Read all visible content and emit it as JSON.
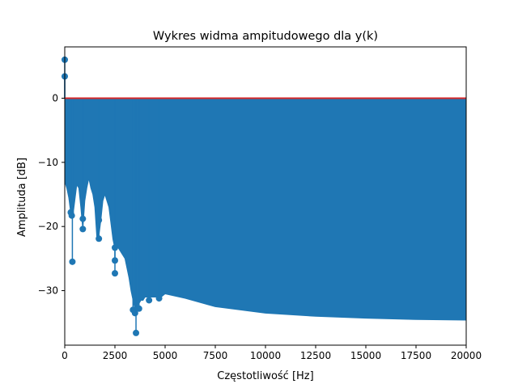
{
  "chart_data": {
    "type": "stem",
    "title": "Wykres widma ampitudowego dla y(k)",
    "xlabel": "Częstotliwość [Hz]",
    "ylabel": "Amplituda [dB]",
    "xlim": [
      0,
      20000
    ],
    "ylim": [
      -38.5,
      8
    ],
    "x_ticks": [
      0,
      2500,
      5000,
      7500,
      10000,
      12500,
      15000,
      17500,
      20000
    ],
    "x_tick_labels": [
      "0",
      "2500",
      "5000",
      "7500",
      "10000",
      "12500",
      "15000",
      "17500",
      "20000"
    ],
    "y_ticks": [
      0,
      -10,
      -20,
      -30
    ],
    "y_tick_labels": [
      "0",
      "−10",
      "−20",
      "−30"
    ],
    "baseline": 0,
    "grid": false,
    "series": [
      {
        "color": "#1f77b4",
        "baseline_color": "#d62728",
        "envelope_lower": {
          "x": [
            0,
            100,
            200,
            300,
            400,
            500,
            600,
            700,
            800,
            900,
            1000,
            1100,
            1200,
            1300,
            1400,
            1500,
            1600,
            1700,
            1800,
            1900,
            2000,
            2200,
            2400,
            2500,
            2600,
            2800,
            3000,
            3200,
            3300,
            3400,
            3500,
            3600,
            3700,
            3800,
            3900,
            4000,
            4200,
            4400,
            4600,
            4800,
            5000,
            6000,
            7500,
            10000,
            12500,
            15000,
            17500,
            20000
          ],
          "y": [
            -13,
            -14,
            -15.5,
            -18,
            -18.5,
            -16,
            -13.5,
            -14,
            -17,
            -20.5,
            -16,
            -14,
            -12.5,
            -14,
            -15,
            -17,
            -21.8,
            -21.5,
            -19,
            -16,
            -15,
            -17,
            -22,
            -23.5,
            -23,
            -24,
            -25,
            -28,
            -30,
            -31.5,
            -33,
            -32.5,
            -32,
            -31.5,
            -31.5,
            -31,
            -31,
            -31,
            -31,
            -31,
            -30.5,
            -31.2,
            -32.5,
            -33.5,
            -34,
            -34.3,
            -34.5,
            -34.6
          ]
        },
        "markers": [
          {
            "x": 0,
            "y": 6
          },
          {
            "x": 0,
            "y": 3.4
          },
          {
            "x": 300,
            "y": -17.8
          },
          {
            "x": 350,
            "y": -18.3
          },
          {
            "x": 380,
            "y": -25.5
          },
          {
            "x": 900,
            "y": -18.8
          },
          {
            "x": 900,
            "y": -20.4
          },
          {
            "x": 1700,
            "y": -19
          },
          {
            "x": 1700,
            "y": -21.9
          },
          {
            "x": 2500,
            "y": -23.3
          },
          {
            "x": 2500,
            "y": -25.3
          },
          {
            "x": 2500,
            "y": -27.3
          },
          {
            "x": 3400,
            "y": -33
          },
          {
            "x": 3500,
            "y": -33.5
          },
          {
            "x": 3550,
            "y": -36.6
          },
          {
            "x": 3700,
            "y": -32.8
          },
          {
            "x": 4200,
            "y": -31.5
          },
          {
            "x": 4700,
            "y": -31.2
          }
        ]
      }
    ]
  }
}
